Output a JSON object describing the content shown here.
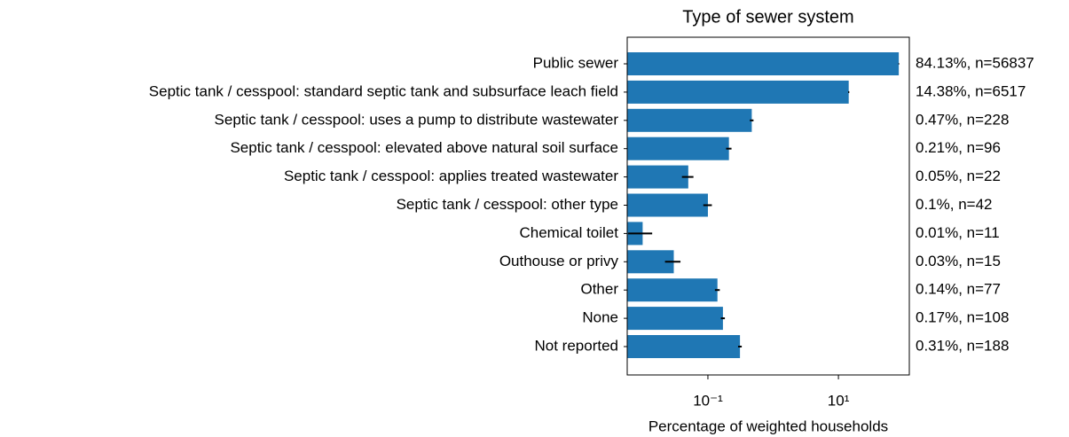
{
  "chart_data": {
    "type": "barh",
    "title": "Type of sewer system",
    "xlabel": "Percentage of weighted households",
    "categories": [
      "Public sewer",
      "Septic tank / cesspool: standard septic tank and subsurface leach field",
      "Septic tank / cesspool: uses a pump to distribute wastewater",
      "Septic tank / cesspool: elevated above natural soil surface",
      "Septic tank / cesspool: applies treated wastewater",
      "Septic tank / cesspool: other type",
      "Chemical toilet",
      "Outhouse or privy",
      "Other",
      "None",
      "Not reported"
    ],
    "values": [
      84.13,
      14.38,
      0.47,
      0.21,
      0.05,
      0.1,
      0.01,
      0.03,
      0.14,
      0.17,
      0.31
    ],
    "errors": [
      1.0,
      0.3,
      0.03,
      0.02,
      0.01,
      0.015,
      0.004,
      0.008,
      0.012,
      0.012,
      0.02
    ],
    "value_labels": [
      "84.13%, n=56837",
      "14.38%, n=6517",
      "0.47%, n=228",
      "0.21%, n=96",
      "0.05%, n=22",
      "0.1%, n=42",
      "0.01%, n=11",
      "0.03%, n=15",
      "0.14%, n=77",
      "0.17%, n=108",
      "0.31%, n=188"
    ],
    "color": "#1f77b4",
    "log_x": true,
    "xlim": [
      0.0058,
      122
    ],
    "xticks": [
      {
        "value": 0.1,
        "label": "10⁻¹"
      },
      {
        "value": 10,
        "label": "10¹"
      }
    ]
  }
}
